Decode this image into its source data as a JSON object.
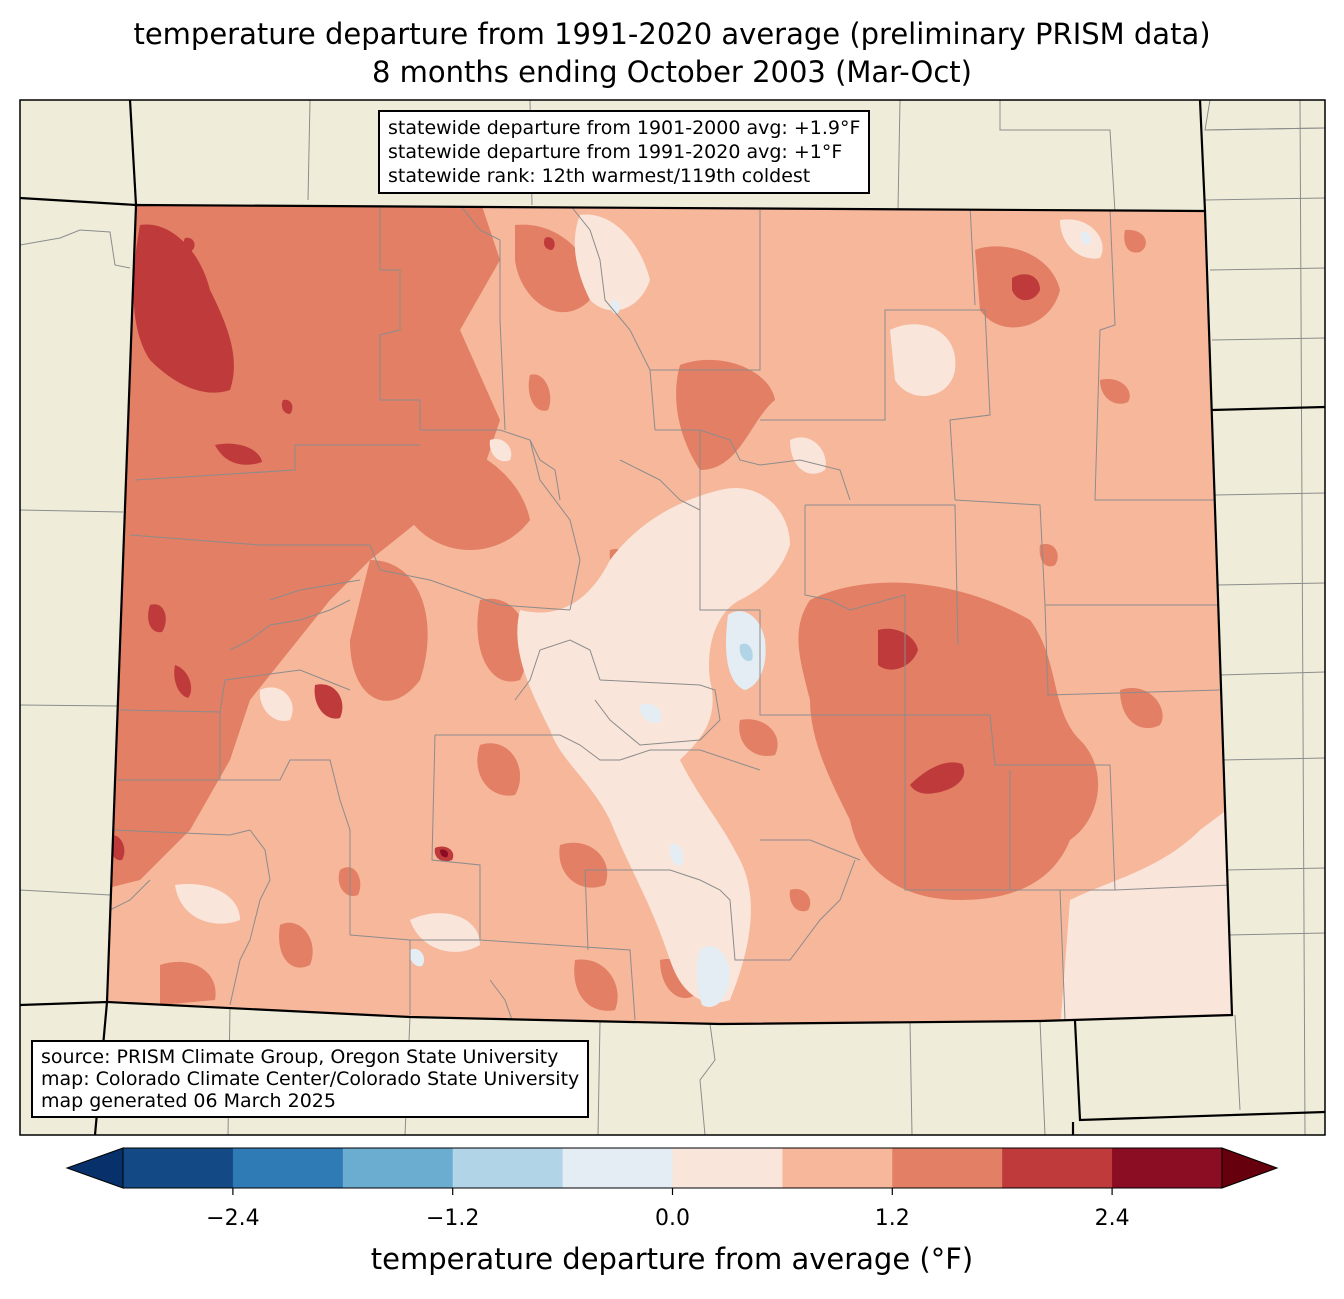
{
  "title": {
    "line1": "temperature departure from 1991-2020 average (preliminary PRISM data)",
    "line2": "8 months ending October 2003 (Mar-Oct)"
  },
  "stats_box": {
    "line1": "statewide departure from 1901-2000 avg: +1.9°F",
    "line2": "statewide departure from 1991-2020 avg: +1°F",
    "line3": "statewide rank: 12th warmest/119th coldest"
  },
  "source_box": {
    "line1": "source: PRISM Climate Group, Oregon State University",
    "line2": "map: Colorado Climate Center/Colorado State University",
    "line3": "map generated 06 March 2025"
  },
  "colorbar": {
    "title": "temperature departure from average (°F)",
    "ticks": [
      "−2.4",
      "−1.2",
      "0.0",
      "1.2",
      "2.4"
    ],
    "tick_values": [
      -2.4,
      -1.2,
      0.0,
      1.2,
      2.4
    ],
    "range": [
      -3.0,
      3.0
    ],
    "step": 0.6,
    "under_color": "#08306b",
    "over_color": "#67000d",
    "colors": [
      "#134a86",
      "#2e7bb6",
      "#6aadd1",
      "#b1d5e7",
      "#e4edf3",
      "#f9e5da",
      "#f6b79b",
      "#e27f64",
      "#bf3a3b",
      "#8a0d24"
    ]
  },
  "map": {
    "land_color": "#efedda",
    "state_fill_base": "#f6b79b"
  }
}
